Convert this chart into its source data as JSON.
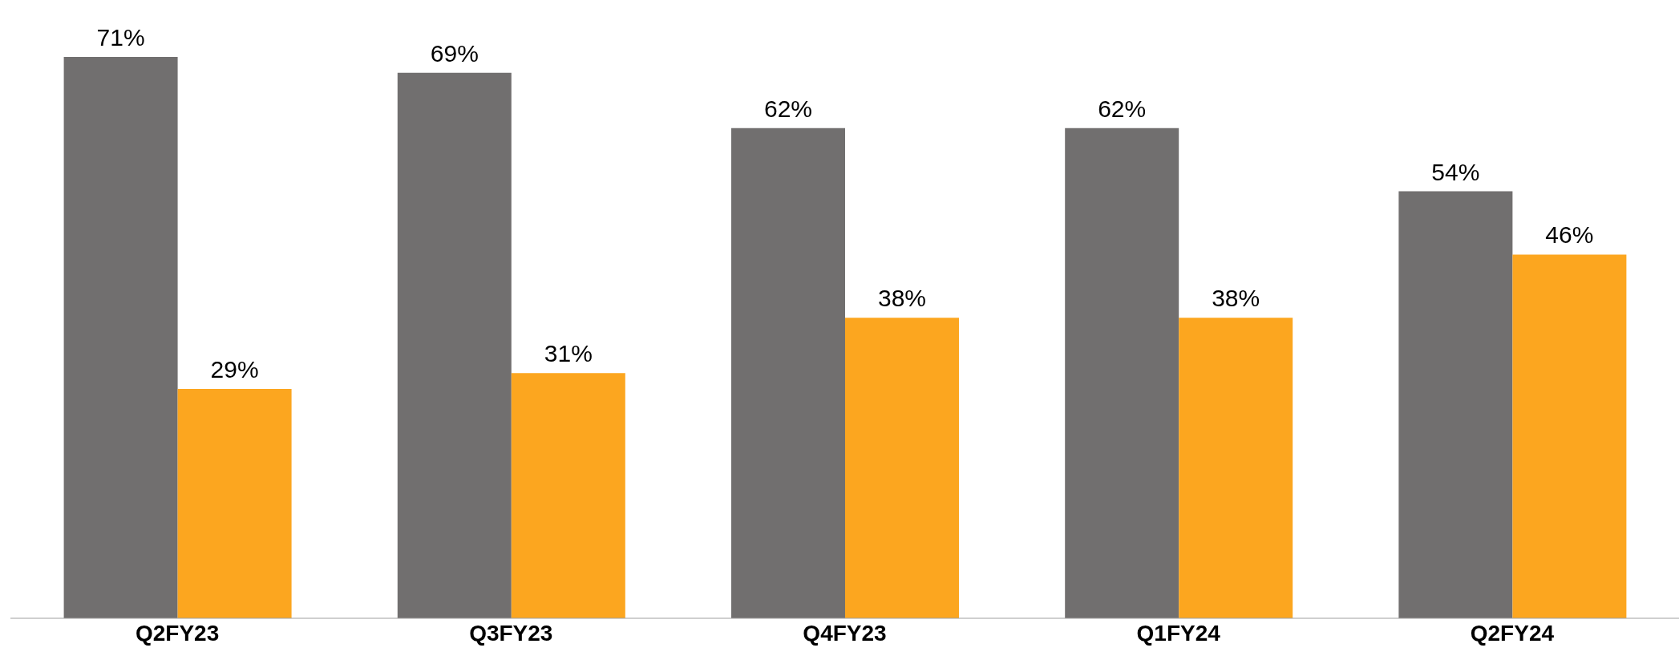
{
  "chart_data": {
    "type": "bar",
    "categories": [
      "Q2FY23",
      "Q3FY23",
      "Q4FY23",
      "Q1FY24",
      "Q2FY24"
    ],
    "series": [
      {
        "color": "#716f6f",
        "values": [
          71,
          69,
          62,
          62,
          54
        ],
        "value_labels": [
          "71%",
          "69%",
          "62%",
          "62%",
          "54%"
        ]
      },
      {
        "color": "#fca61f",
        "values": [
          29,
          31,
          38,
          38,
          46
        ],
        "value_labels": [
          "29%",
          "31%",
          "38%",
          "38%",
          "46%"
        ]
      }
    ],
    "grid": false,
    "legend": false,
    "tick_labels": "x"
  }
}
